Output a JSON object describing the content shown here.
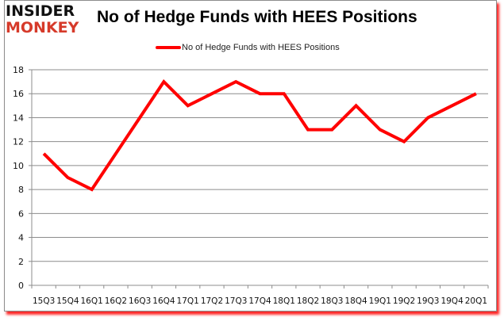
{
  "logo": {
    "line1": "INSIDER",
    "line2": "MONKEY",
    "line1_color": "#111111",
    "line2_color": "#d63a2a"
  },
  "title": "No of Hedge Funds with HEES Positions",
  "legend": {
    "label": "No of Hedge Funds with HEES Positions",
    "color": "#ff0000"
  },
  "colors": {
    "series": "#ff0000",
    "gridline": "#8c8c8c",
    "frame_shadow": "#ff0000"
  },
  "chart_data": {
    "type": "line",
    "title": "No of Hedge Funds with HEES Positions",
    "xlabel": "",
    "ylabel": "",
    "categories": [
      "15Q3",
      "15Q4",
      "16Q1",
      "16Q2",
      "16Q3",
      "16Q4",
      "17Q1",
      "17Q2",
      "17Q3",
      "17Q4",
      "18Q1",
      "18Q2",
      "18Q3",
      "18Q4",
      "19Q1",
      "19Q2",
      "19Q3",
      "19Q4",
      "20Q1"
    ],
    "series": [
      {
        "name": "No of Hedge Funds with HEES Positions",
        "values": [
          11,
          9,
          8,
          11,
          14,
          17,
          15,
          16,
          17,
          16,
          16,
          13,
          13,
          15,
          13,
          12,
          14,
          15,
          16
        ]
      }
    ],
    "ylim": [
      0,
      18
    ],
    "yticks": [
      0,
      2,
      4,
      6,
      8,
      10,
      12,
      14,
      16,
      18
    ],
    "grid": true,
    "legend_position": "top"
  }
}
